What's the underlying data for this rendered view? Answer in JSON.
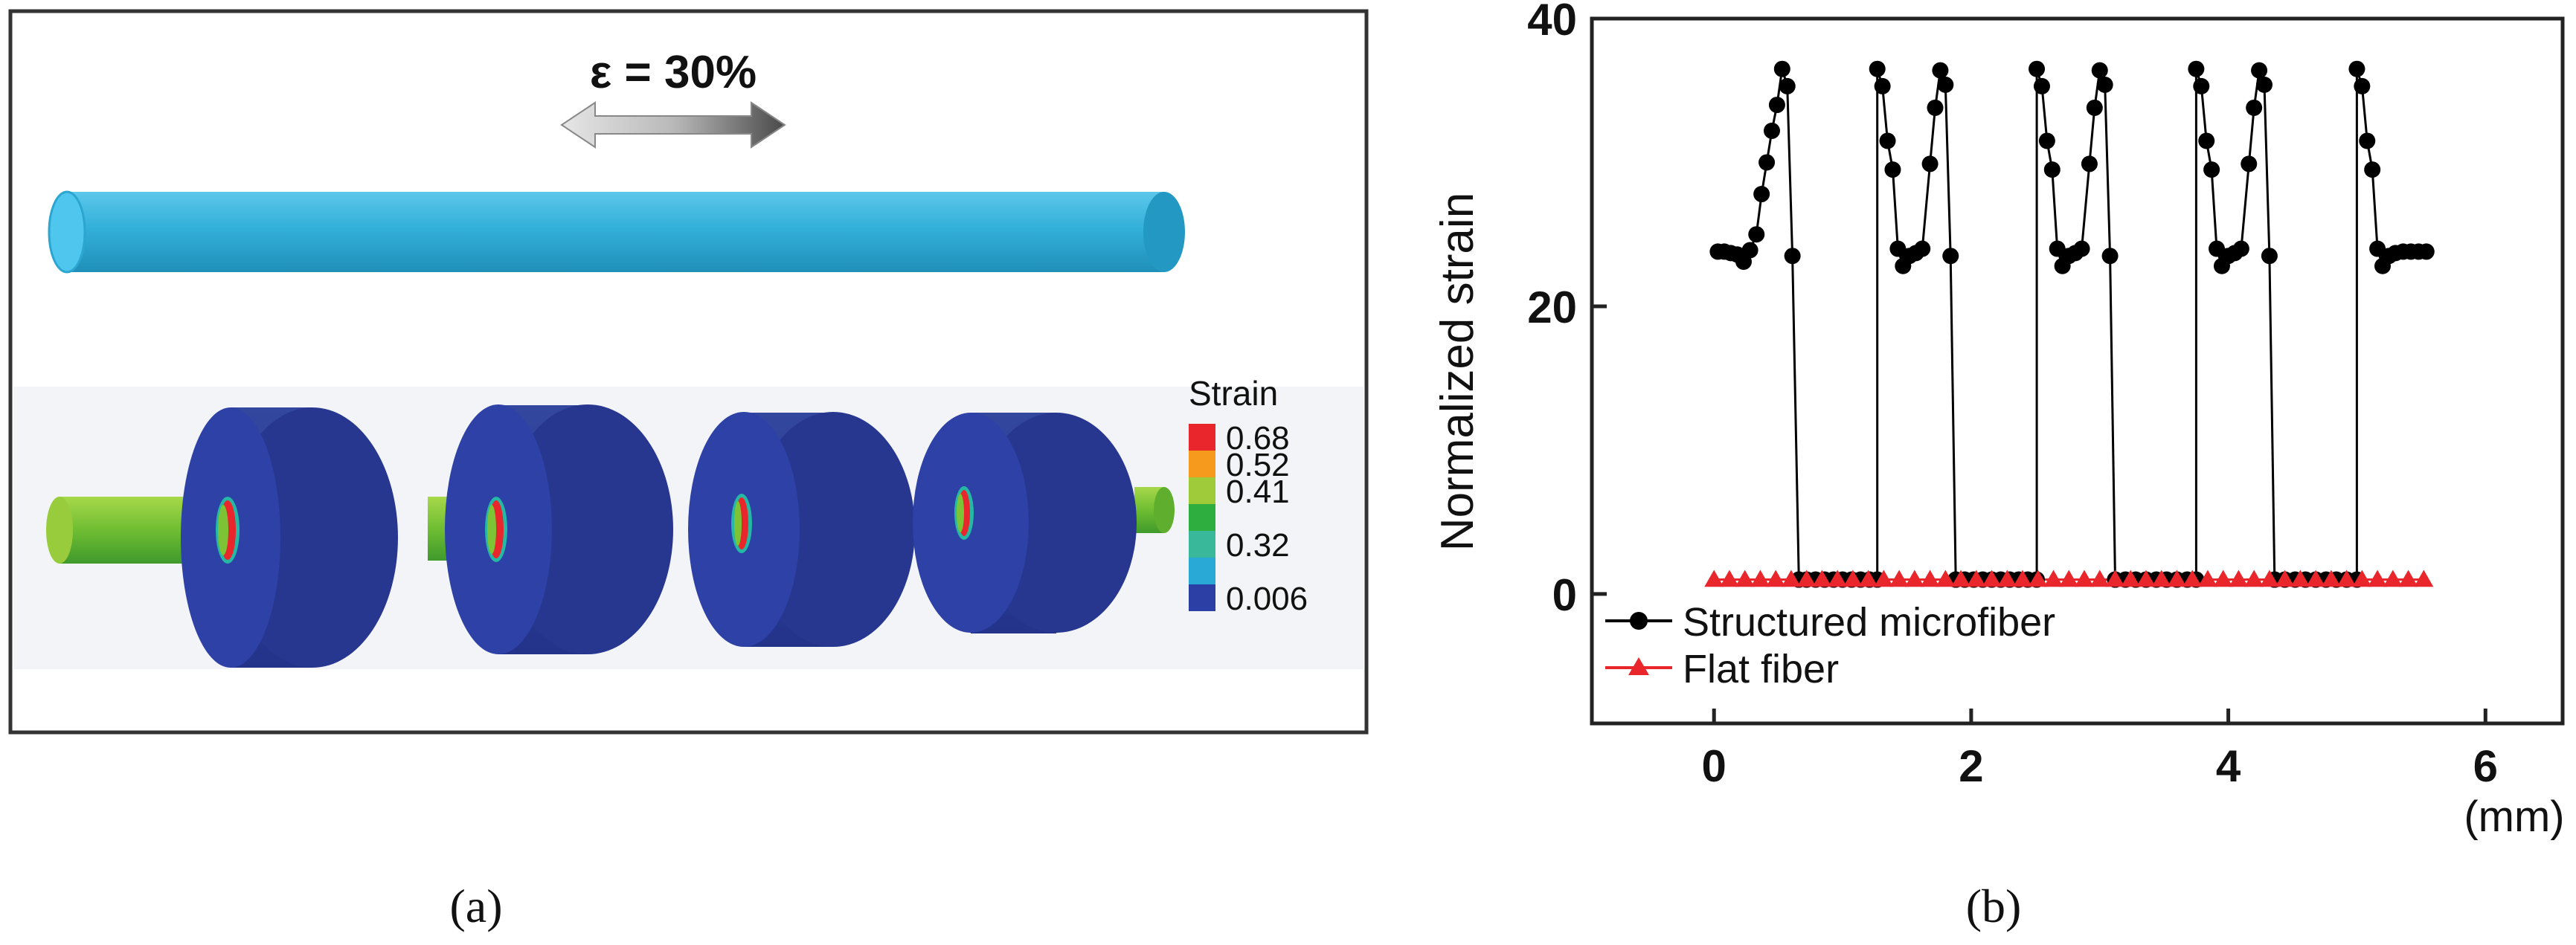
{
  "panel_a": {
    "strain_label": "ε = 30%",
    "legend_title": "Strain",
    "legend_items": [
      {
        "label": "0.68",
        "color": "#e8262b"
      },
      {
        "label": "0.52",
        "color": "#f59a1c"
      },
      {
        "label": "0.41",
        "color": "#9fcb3a"
      },
      {
        "label": "",
        "color": "#2eae3e"
      },
      {
        "label": "0.32",
        "color": "#39b99a"
      },
      {
        "label": "",
        "color": "#28a9d6"
      },
      {
        "label": "0.006",
        "color": "#2b3fa5"
      }
    ],
    "caption": "(a)"
  },
  "panel_b": {
    "caption": "(b)"
  },
  "colors": {
    "fiber": "#34b2d9",
    "disk": "#2b3da6",
    "core": "#7cc436",
    "structured": "#000000",
    "flat": "#e8262b"
  },
  "chart_data": {
    "type": "line",
    "title": "",
    "xlabel": "(mm)",
    "ylabel": "Normalized strain",
    "xlim": [
      -0.95,
      6.6
    ],
    "ylim": [
      -9,
      40
    ],
    "xticks": [
      0,
      2,
      4,
      6
    ],
    "yticks": [
      0,
      20,
      40
    ],
    "legend": "bottom-left",
    "series": [
      {
        "name": "Structured microfiber",
        "color": "#000000",
        "marker": "circle",
        "x": [
          0.03,
          0.08,
          0.13,
          0.18,
          0.23,
          0.28,
          0.33,
          0.37,
          0.41,
          0.45,
          0.49,
          0.53,
          0.57,
          0.61,
          0.66,
          0.66,
          0.72,
          0.79,
          0.86,
          0.93,
          1.0,
          1.07,
          1.14,
          1.21,
          1.27,
          1.27,
          1.31,
          1.35,
          1.39,
          1.43,
          1.47,
          1.52,
          1.57,
          1.62,
          1.68,
          1.72,
          1.76,
          1.8,
          1.84,
          1.88,
          1.88,
          1.95,
          2.02,
          2.09,
          2.16,
          2.23,
          2.3,
          2.37,
          2.44,
          2.51,
          2.51,
          2.55,
          2.59,
          2.63,
          2.67,
          2.71,
          2.76,
          2.81,
          2.86,
          2.92,
          2.96,
          3.0,
          3.04,
          3.08,
          3.12,
          3.12,
          3.2,
          3.28,
          3.36,
          3.44,
          3.52,
          3.6,
          3.68,
          3.75,
          3.75,
          3.79,
          3.83,
          3.87,
          3.91,
          3.95,
          4.0,
          4.05,
          4.1,
          4.16,
          4.2,
          4.24,
          4.28,
          4.32,
          4.36,
          4.36,
          4.44,
          4.52,
          4.6,
          4.68,
          4.76,
          4.84,
          4.92,
          5.0,
          5.0,
          5.04,
          5.08,
          5.12,
          5.16,
          5.2,
          5.25,
          5.3,
          5.36,
          5.42,
          5.48,
          5.54
        ],
        "y": [
          23.8,
          23.8,
          23.7,
          23.6,
          23.1,
          23.9,
          25.0,
          27.8,
          30.0,
          32.2,
          34.0,
          36.5,
          35.3,
          23.5,
          1.0,
          1.0,
          1.0,
          1.0,
          1.0,
          1.0,
          1.0,
          1.0,
          1.0,
          1.0,
          1.0,
          36.5,
          35.3,
          31.5,
          29.5,
          24.0,
          22.8,
          23.5,
          23.7,
          24.0,
          29.9,
          33.8,
          36.4,
          35.4,
          23.5,
          1.0,
          1.0,
          1.0,
          1.0,
          1.0,
          1.0,
          1.0,
          1.0,
          1.0,
          1.0,
          1.0,
          36.5,
          35.3,
          31.5,
          29.5,
          24.0,
          22.8,
          23.5,
          23.7,
          24.0,
          29.9,
          33.8,
          36.4,
          35.4,
          23.5,
          1.0,
          1.0,
          1.0,
          1.0,
          1.0,
          1.0,
          1.0,
          1.0,
          1.0,
          1.0,
          36.5,
          35.3,
          31.5,
          29.5,
          24.0,
          22.8,
          23.5,
          23.7,
          24.0,
          29.9,
          33.8,
          36.4,
          35.4,
          23.5,
          1.0,
          1.0,
          1.0,
          1.0,
          1.0,
          1.0,
          1.0,
          1.0,
          1.0,
          1.0,
          36.5,
          35.3,
          31.5,
          29.5,
          24.0,
          22.8,
          23.5,
          23.7,
          23.8,
          23.8,
          23.8,
          23.8
        ]
      },
      {
        "name": "Flat fiber",
        "color": "#e8262b",
        "marker": "triangle",
        "x": [
          0.0,
          0.12,
          0.24,
          0.36,
          0.48,
          0.6,
          0.72,
          0.84,
          0.96,
          1.08,
          1.2,
          1.32,
          1.44,
          1.56,
          1.68,
          1.8,
          1.92,
          2.04,
          2.16,
          2.28,
          2.4,
          2.52,
          2.64,
          2.76,
          2.88,
          3.0,
          3.12,
          3.24,
          3.36,
          3.48,
          3.6,
          3.72,
          3.84,
          3.96,
          4.08,
          4.2,
          4.32,
          4.44,
          4.56,
          4.68,
          4.8,
          4.92,
          5.04,
          5.16,
          5.28,
          5.4,
          5.52
        ],
        "y": [
          1.0,
          1.0,
          1.0,
          1.0,
          1.0,
          1.0,
          1.0,
          1.0,
          1.0,
          1.0,
          1.0,
          1.0,
          1.0,
          1.0,
          1.0,
          1.0,
          1.0,
          1.0,
          1.0,
          1.0,
          1.0,
          1.0,
          1.0,
          1.0,
          1.0,
          1.0,
          1.0,
          1.0,
          1.0,
          1.0,
          1.0,
          1.0,
          1.0,
          1.0,
          1.0,
          1.0,
          1.0,
          1.0,
          1.0,
          1.0,
          1.0,
          1.0,
          1.0,
          1.0,
          1.0,
          1.0,
          1.0
        ]
      }
    ]
  }
}
